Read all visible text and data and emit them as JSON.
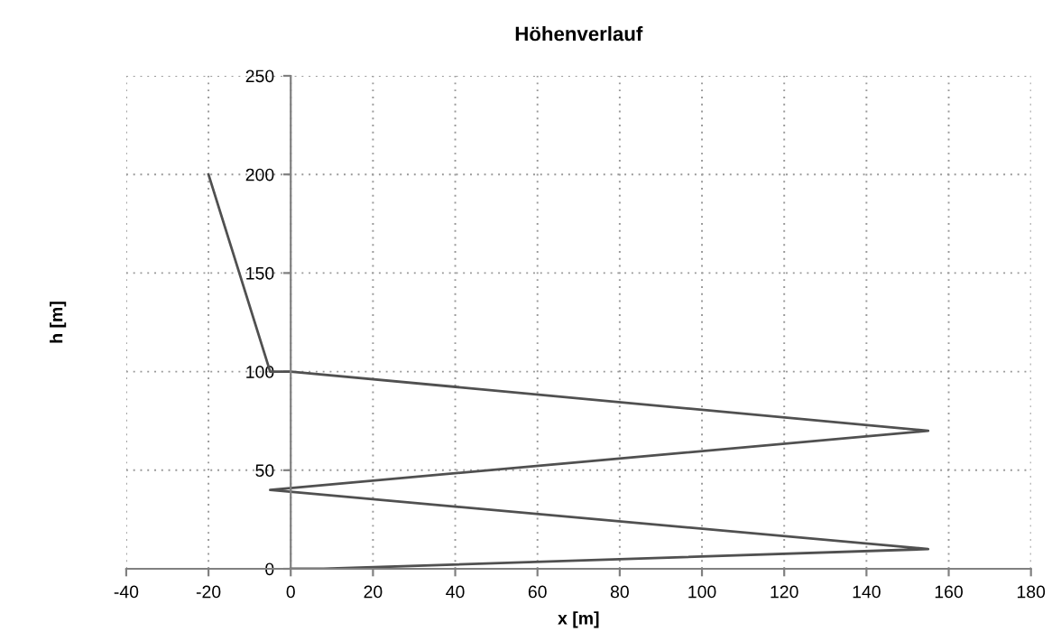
{
  "chart_data": {
    "type": "line",
    "title": "Höhenverlauf",
    "xlabel": "x [m]",
    "ylabel": "h [m]",
    "x": [
      0,
      8,
      155,
      -5,
      155,
      0,
      -5,
      -20
    ],
    "series": [
      {
        "color": "#505050",
        "values": [
          0,
          0,
          10,
          40,
          70,
          100,
          100,
          200
        ]
      }
    ],
    "xlim": [
      -40,
      180
    ],
    "xticks": [
      -40,
      -20,
      0,
      20,
      40,
      60,
      80,
      100,
      120,
      140,
      160,
      180
    ],
    "ylim": [
      0,
      250
    ],
    "yticks": [
      0,
      50,
      100,
      150,
      200,
      250
    ],
    "grid": true,
    "line_style": "solid",
    "marker": "none"
  }
}
